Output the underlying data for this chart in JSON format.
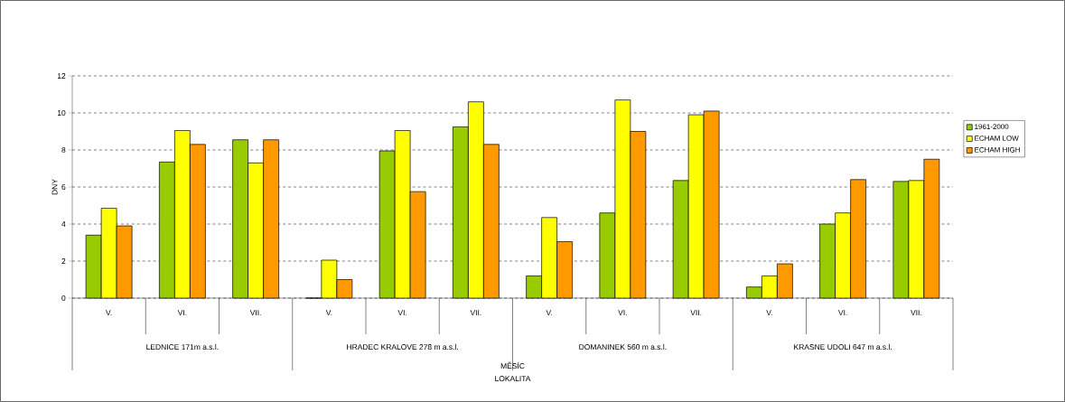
{
  "chart_data": {
    "type": "bar",
    "ylabel": "DNY",
    "categories": [
      "V.",
      "VI.",
      "VII.",
      "V.",
      "VI.",
      "VII.",
      "V.",
      "VI.",
      "VII.",
      "V.",
      "VI.",
      "VII."
    ],
    "series": [
      {
        "name": "1961-2000",
        "color": "#99cc00",
        "values": [
          3.4,
          7.35,
          8.55,
          0,
          7.95,
          9.25,
          1.2,
          4.6,
          6.35,
          0.6,
          4.0,
          6.3
        ]
      },
      {
        "name": "ECHAM LOW",
        "color": "#ffff00",
        "values": [
          4.85,
          9.05,
          7.3,
          2.05,
          9.05,
          10.6,
          4.35,
          10.7,
          9.9,
          1.2,
          4.6,
          6.35
        ]
      },
      {
        "name": "ECHAM HIGH",
        "color": "#ff9900",
        "values": [
          3.9,
          8.3,
          8.55,
          1.0,
          5.75,
          8.3,
          3.05,
          9.0,
          10.1,
          1.85,
          6.4,
          7.5
        ]
      }
    ],
    "ylim": [
      0,
      12
    ],
    "yticks": [
      0,
      2,
      4,
      6,
      8,
      10,
      12
    ],
    "grid": "y",
    "legend": "right",
    "annotations": [
      "LEDNICE 171m a.s.l.",
      "HRADEC KRALOVE  278 m a.s.l.",
      "DOMANINEK 560 m a.s.l.",
      "KRASNE UDOLI 647 m a.s.l.",
      "MĚSÍC",
      "LOKALITA"
    ]
  }
}
